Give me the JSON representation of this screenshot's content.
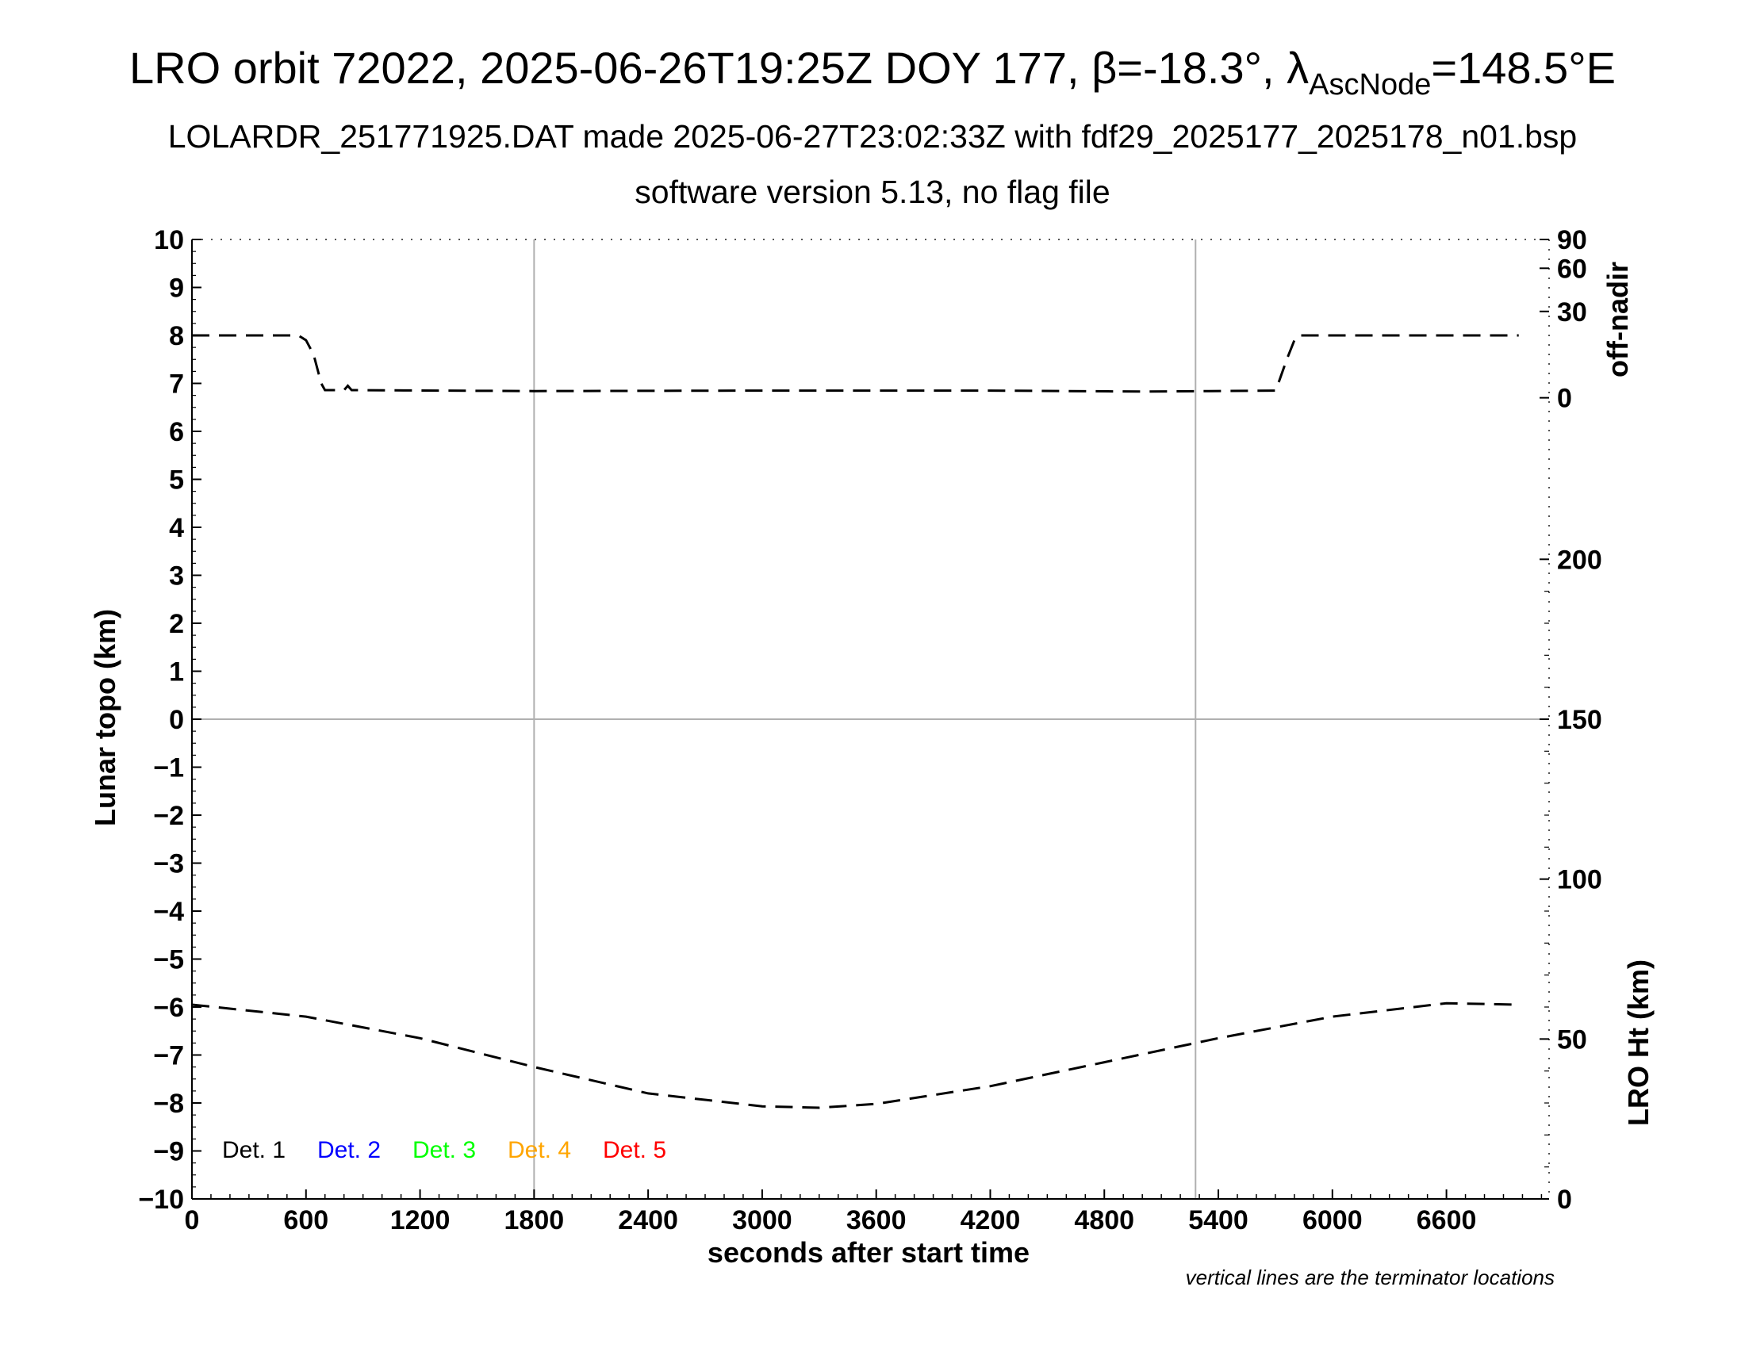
{
  "title": {
    "main": "LRO orbit 72022, 2025-06-26T19:25Z DOY 177, β=-18.3°, λ",
    "main_sub": "AscNode",
    "main_end": "=148.5°E",
    "line2": "LOLARDR_251771925.DAT made 2025-06-27T23:02:33Z with fdf29_2025177_2025178_n01.bsp",
    "line3": "software version 5.13, no flag file"
  },
  "note": "vertical lines are the terminator locations",
  "chart_data": {
    "type": "line",
    "xlabel": "seconds after start time",
    "xlim": [
      0,
      7140
    ],
    "xticks": [
      0,
      600,
      1200,
      1800,
      2400,
      3000,
      3600,
      4200,
      4800,
      5400,
      6000,
      6600
    ],
    "ylabel": "Lunar topo (km)",
    "ylim": [
      -10,
      10
    ],
    "yticks": [
      "10",
      "9",
      "8",
      "7",
      "6",
      "5",
      "4",
      "3",
      "2",
      "1",
      "0",
      "−1",
      "−2",
      "−3",
      "−4",
      "−5",
      "−6",
      "−7",
      "−8",
      "−9",
      "−10"
    ],
    "terminators": [
      1800,
      5280
    ],
    "zero_line": 0,
    "right_axis_top": {
      "label": "off-nadir",
      "ticks": [
        "90",
        "60",
        "30",
        "0"
      ],
      "tick_topo_positions": [
        10,
        9.4,
        8.5,
        6.7
      ]
    },
    "right_axis_bottom": {
      "label": "LRO Ht (km)",
      "ticks": [
        "200",
        "150",
        "100",
        "50",
        "0"
      ],
      "ylim": [
        0,
        300
      ]
    },
    "series": [
      {
        "role": "off-nadir angle",
        "style": "dashed",
        "color": "#000000",
        "x": [
          0,
          560,
          600,
          640,
          680,
          700,
          800,
          820,
          840,
          1800,
          3000,
          4200,
          5000,
          5700,
          5720,
          5760,
          5800,
          5820,
          6000,
          6600,
          6980
        ],
        "y": [
          8.0,
          8.0,
          7.9,
          7.6,
          7.0,
          6.86,
          6.86,
          6.95,
          6.86,
          6.84,
          6.85,
          6.85,
          6.83,
          6.85,
          7.05,
          7.5,
          7.9,
          8.0,
          8.0,
          8.0,
          8.0
        ]
      },
      {
        "role": "LRO height",
        "style": "dashed",
        "color": "#000000",
        "x": [
          0,
          600,
          1200,
          1800,
          2400,
          3000,
          3300,
          3600,
          4200,
          4800,
          5400,
          6000,
          6600,
          6980
        ],
        "y": [
          -5.95,
          -6.2,
          -6.65,
          -7.25,
          -7.8,
          -8.07,
          -8.1,
          -8.02,
          -7.65,
          -7.15,
          -6.65,
          -6.2,
          -5.92,
          -5.95
        ]
      }
    ],
    "legend": {
      "placement": "bottom-left",
      "entries": [
        {
          "name": "Det. 1",
          "color": "#000000"
        },
        {
          "name": "Det. 2",
          "color": "#0000ff"
        },
        {
          "name": "Det. 3",
          "color": "#00ff00"
        },
        {
          "name": "Det. 4",
          "color": "#ffa500"
        },
        {
          "name": "Det. 5",
          "color": "#ff0000"
        }
      ]
    },
    "colors": {
      "frame": "#000000",
      "grid": "#b0b0b0",
      "dots": "#555555"
    }
  }
}
